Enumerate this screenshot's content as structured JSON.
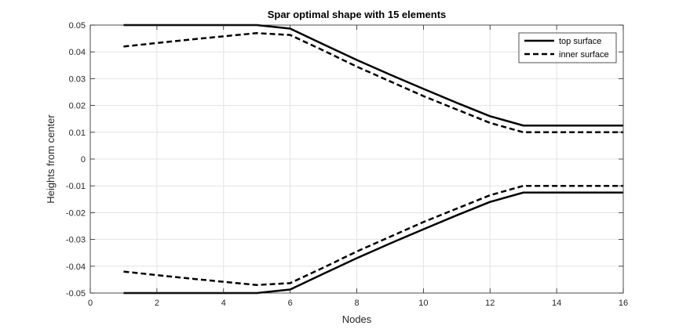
{
  "chart_data": {
    "type": "line",
    "title": "Spar optimal shape with 15 elements",
    "xlabel": "Nodes",
    "ylabel": "Heights from center",
    "xlim": [
      0,
      16
    ],
    "ylim": [
      -0.05,
      0.05
    ],
    "grid": true,
    "legend_position": "top-right",
    "x_ticks": [
      0,
      2,
      4,
      6,
      8,
      10,
      12,
      14,
      16
    ],
    "x_tick_labels": [
      "0",
      "2",
      "4",
      "6",
      "8",
      "10",
      "12",
      "14",
      "16"
    ],
    "y_ticks": [
      0.05,
      0.04,
      0.03,
      0.02,
      0.01,
      0,
      -0.01,
      -0.02,
      -0.03,
      -0.04,
      -0.05
    ],
    "y_tick_labels": [
      "0.05",
      "0.04",
      "0.03",
      "0.02",
      "0.01",
      "0",
      "-0.01",
      "-0.02",
      "-0.03",
      "-0.04",
      "-0.05"
    ],
    "legend": [
      {
        "label": "top surface",
        "style": "solid"
      },
      {
        "label": "inner surface",
        "style": "dashed"
      }
    ],
    "series": [
      {
        "name": "top surface (upper)",
        "legend_ref": 0,
        "x": [
          1,
          2,
          3,
          4,
          5,
          6,
          7,
          8,
          9,
          10,
          11,
          12,
          13,
          14,
          15,
          16
        ],
        "values": [
          0.05,
          0.05,
          0.05,
          0.05,
          0.05,
          0.0487,
          0.0428,
          0.037,
          0.0315,
          0.0262,
          0.021,
          0.016,
          0.0125,
          0.0125,
          0.0125,
          0.0125
        ]
      },
      {
        "name": "top surface (lower)",
        "legend_ref": 0,
        "x": [
          1,
          2,
          3,
          4,
          5,
          6,
          7,
          8,
          9,
          10,
          11,
          12,
          13,
          14,
          15,
          16
        ],
        "values": [
          -0.05,
          -0.05,
          -0.05,
          -0.05,
          -0.05,
          -0.0487,
          -0.0428,
          -0.037,
          -0.0315,
          -0.0262,
          -0.021,
          -0.016,
          -0.0125,
          -0.0125,
          -0.0125,
          -0.0125
        ]
      },
      {
        "name": "inner surface (upper)",
        "legend_ref": 1,
        "x": [
          1,
          2,
          3,
          4,
          5,
          6,
          7,
          8,
          9,
          10,
          11,
          12,
          13,
          14,
          15,
          16
        ],
        "values": [
          0.042,
          0.0433,
          0.0446,
          0.0458,
          0.047,
          0.0463,
          0.0405,
          0.0345,
          0.029,
          0.0235,
          0.0185,
          0.0135,
          0.01,
          0.01,
          0.01,
          0.01
        ]
      },
      {
        "name": "inner surface (lower)",
        "legend_ref": 1,
        "x": [
          1,
          2,
          3,
          4,
          5,
          6,
          7,
          8,
          9,
          10,
          11,
          12,
          13,
          14,
          15,
          16
        ],
        "values": [
          -0.042,
          -0.0433,
          -0.0446,
          -0.0458,
          -0.047,
          -0.0463,
          -0.0405,
          -0.0345,
          -0.029,
          -0.0235,
          -0.0185,
          -0.0135,
          -0.01,
          -0.01,
          -0.01,
          -0.01
        ]
      }
    ]
  }
}
